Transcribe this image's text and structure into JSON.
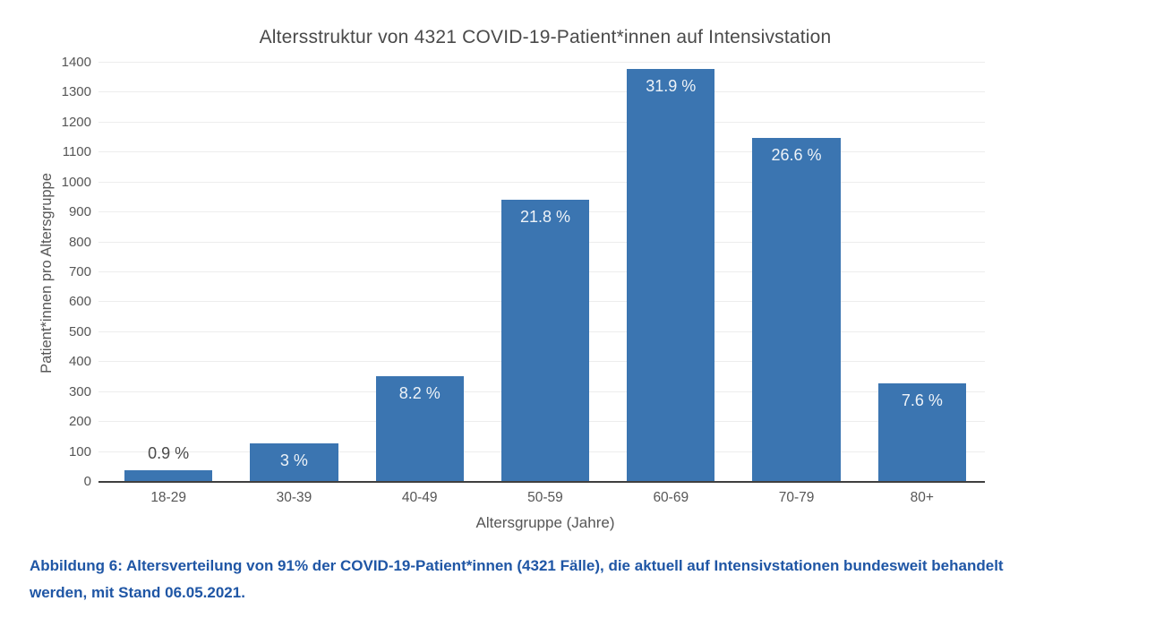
{
  "chart_data": {
    "type": "bar",
    "title": "Altersstruktur von 4321 COVID-19-Patient*innen auf Intensivstation",
    "xlabel": "Altersgruppe (Jahre)",
    "ylabel": "Patient*innen pro Altersgruppe",
    "categories": [
      "18-29",
      "30-39",
      "40-49",
      "50-59",
      "60-69",
      "70-79",
      "80+"
    ],
    "values": [
      39,
      130,
      354,
      942,
      1378,
      1149,
      328
    ],
    "bar_labels": [
      "0.9 %",
      "3 %",
      "8.2 %",
      "21.8 %",
      "31.9 %",
      "26.6 %",
      "7.6 %"
    ],
    "percentages": [
      0.9,
      3,
      8.2,
      21.8,
      31.9,
      26.6,
      7.6
    ],
    "total_patients": 4321,
    "ylim": [
      0,
      1400
    ],
    "ytick_step": 100,
    "grid": true,
    "legend_position": "none",
    "colors": {
      "bar": "#3b75b1",
      "label_inside": "#eef3f8",
      "label_outside": "#4a4a4a",
      "axis_text": "#565656",
      "title_text": "#4a4a4a",
      "gridline": "#ededed",
      "axis_line": "#3f3f3f"
    }
  },
  "caption": {
    "color": "#1f56a5",
    "lines": [
      "Abbildung 6: Altersverteilung von 91% der COVID-19-Patient*innen (4321 Fälle), die aktuell auf Intensivstationen bundesweit behandelt",
      "werden, mit Stand 06.05.2021."
    ]
  }
}
